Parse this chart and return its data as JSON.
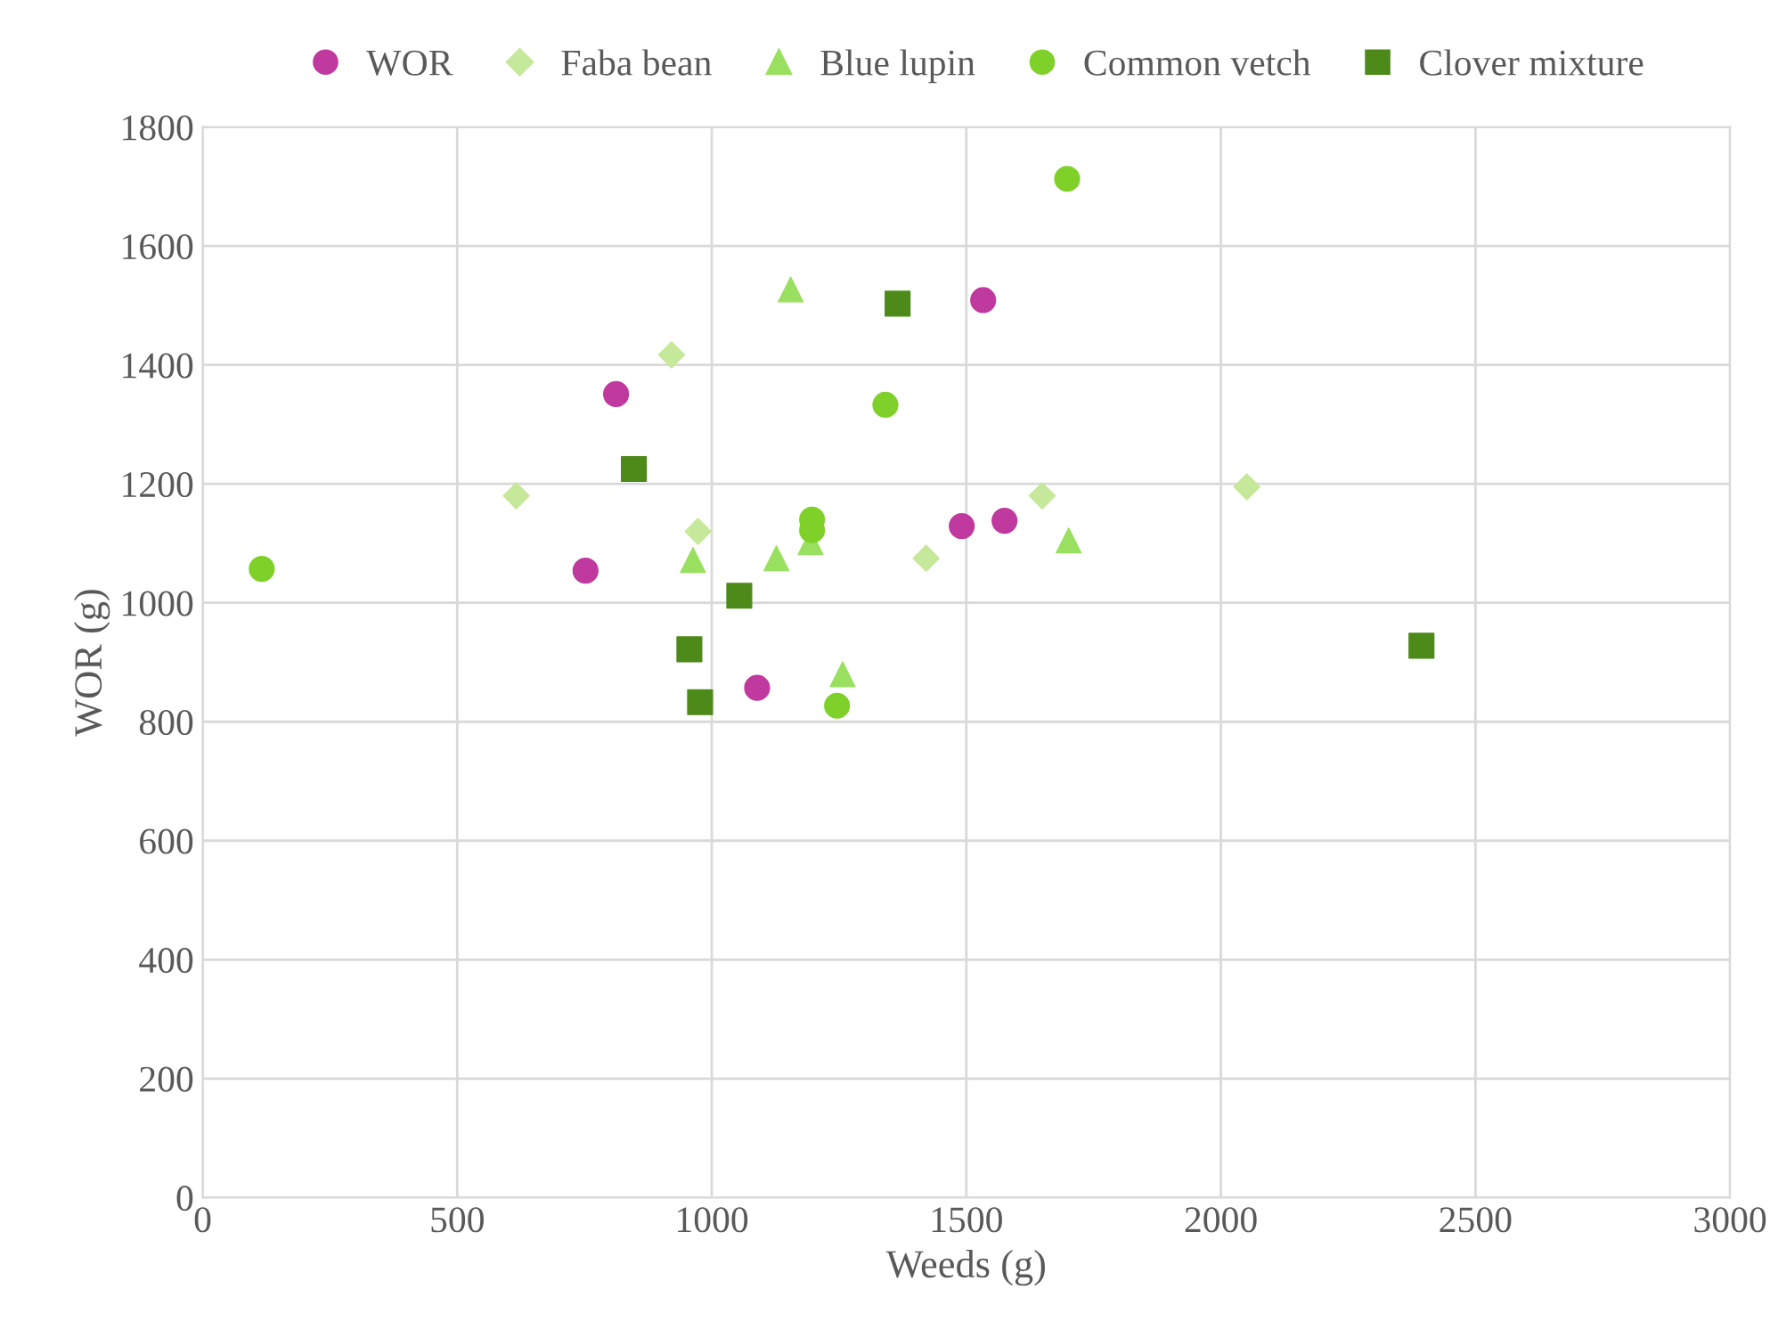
{
  "chart_data": {
    "type": "scatter",
    "xlabel": "Weeds (g)",
    "ylabel": "WOR (g)",
    "xlim": [
      0,
      3000
    ],
    "xticks": [
      0,
      500,
      1000,
      1500,
      2000,
      2500,
      3000
    ],
    "ylim": [
      0,
      1800
    ],
    "yticks": [
      0,
      200,
      400,
      600,
      800,
      1000,
      1200,
      1400,
      1600,
      1800
    ],
    "grid": true,
    "legend": "top",
    "series": [
      {
        "name": "WOR",
        "color": "#c0399f",
        "marker": "circle",
        "x": [
          752,
          812,
          1089,
          1491,
          1533,
          1575
        ],
        "values": [
          1054,
          1351,
          857,
          1129,
          1509,
          1138
        ]
      },
      {
        "name": "Faba bean",
        "color": "#c6e89a",
        "marker": "diamond",
        "x": [
          616,
          921,
          973,
          1421,
          1649,
          2051
        ],
        "values": [
          1180,
          1417,
          1120,
          1075,
          1180,
          1195
        ]
      },
      {
        "name": "Blue lupin",
        "color": "#99e060",
        "marker": "triangle",
        "x": [
          1155,
          963,
          1127,
          1194,
          1257,
          1701
        ],
        "values": [
          1527,
          1072,
          1075,
          1102,
          880,
          1105
        ]
      },
      {
        "name": "Common vetch",
        "color": "#7fd12a",
        "marker": "circle",
        "x": [
          116,
          1698,
          1341,
          1197,
          1197,
          1246
        ],
        "values": [
          1057,
          1713,
          1333,
          1140,
          1122,
          827
        ]
      },
      {
        "name": "Clover mixture",
        "color": "#4e8a1a",
        "marker": "square",
        "x": [
          1365,
          847,
          1054,
          956,
          977,
          2394
        ],
        "values": [
          1503,
          1225,
          1012,
          922,
          833,
          928
        ]
      }
    ]
  }
}
